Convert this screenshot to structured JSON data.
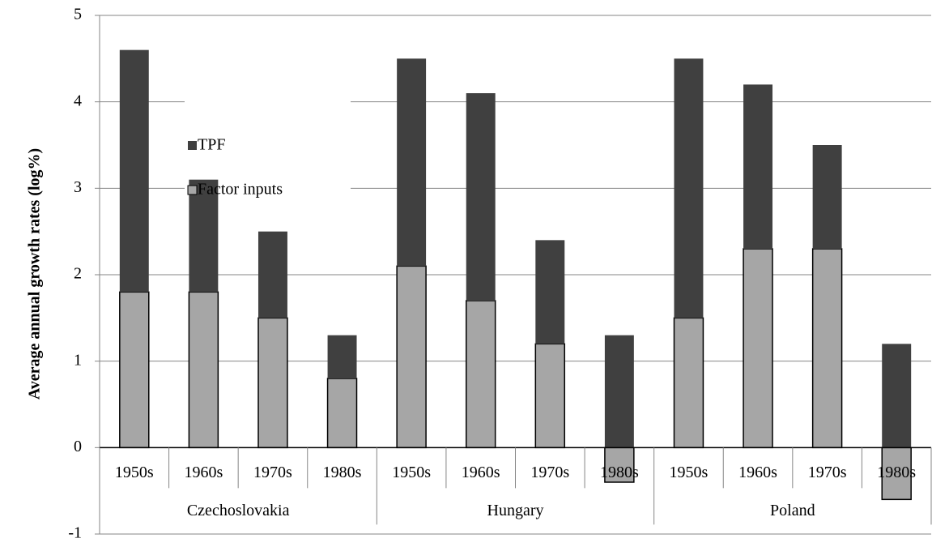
{
  "chart_data": {
    "type": "stacked_bar",
    "y_axis_label": "Average annual growth rates (log%)",
    "categories": [
      "1950s",
      "1960s",
      "1970s",
      "1980s",
      "1950s",
      "1960s",
      "1970s",
      "1980s",
      "1950s",
      "1960s",
      "1970s",
      "1980s"
    ],
    "groups": [
      "Czechoslovakia",
      "Hungary",
      "Poland"
    ],
    "series": [
      {
        "name": "Factor inputs",
        "color": "#a6a6a6",
        "values": [
          1.8,
          1.8,
          1.5,
          0.8,
          2.1,
          1.7,
          1.2,
          -0.4,
          1.5,
          2.3,
          2.3,
          -0.6
        ]
      },
      {
        "name": "TPF",
        "color": "#404040",
        "values": [
          2.8,
          1.3,
          1.0,
          0.5,
          2.4,
          2.4,
          1.2,
          1.3,
          3.0,
          1.9,
          1.2,
          1.2
        ]
      }
    ],
    "ylim": [
      -1,
      5
    ],
    "yticks": [
      -1,
      0,
      1,
      2,
      3,
      4,
      5
    ],
    "grid": true,
    "legend": "upper left"
  }
}
